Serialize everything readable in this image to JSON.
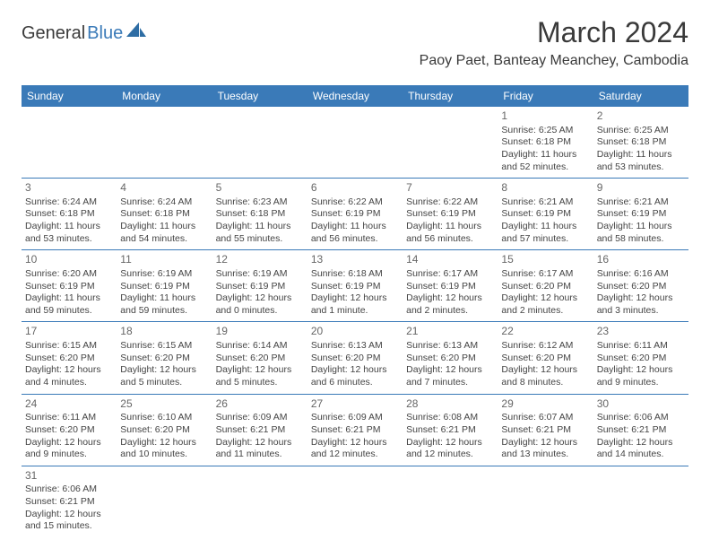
{
  "logo": {
    "general": "General",
    "blue": "Blue"
  },
  "title": "March 2024",
  "location": "Paoy Paet, Banteay Meanchey, Cambodia",
  "dayHeaders": [
    "Sunday",
    "Monday",
    "Tuesday",
    "Wednesday",
    "Thursday",
    "Friday",
    "Saturday"
  ],
  "colors": {
    "headerBg": "#3a7ab8",
    "headerText": "#ffffff",
    "border": "#3a7ab8",
    "cellText": "#444444",
    "dayNumText": "#666666"
  },
  "weeks": [
    [
      null,
      null,
      null,
      null,
      null,
      {
        "num": "1",
        "sunrise": "Sunrise: 6:25 AM",
        "sunset": "Sunset: 6:18 PM",
        "daylight": "Daylight: 11 hours and 52 minutes."
      },
      {
        "num": "2",
        "sunrise": "Sunrise: 6:25 AM",
        "sunset": "Sunset: 6:18 PM",
        "daylight": "Daylight: 11 hours and 53 minutes."
      }
    ],
    [
      {
        "num": "3",
        "sunrise": "Sunrise: 6:24 AM",
        "sunset": "Sunset: 6:18 PM",
        "daylight": "Daylight: 11 hours and 53 minutes."
      },
      {
        "num": "4",
        "sunrise": "Sunrise: 6:24 AM",
        "sunset": "Sunset: 6:18 PM",
        "daylight": "Daylight: 11 hours and 54 minutes."
      },
      {
        "num": "5",
        "sunrise": "Sunrise: 6:23 AM",
        "sunset": "Sunset: 6:18 PM",
        "daylight": "Daylight: 11 hours and 55 minutes."
      },
      {
        "num": "6",
        "sunrise": "Sunrise: 6:22 AM",
        "sunset": "Sunset: 6:19 PM",
        "daylight": "Daylight: 11 hours and 56 minutes."
      },
      {
        "num": "7",
        "sunrise": "Sunrise: 6:22 AM",
        "sunset": "Sunset: 6:19 PM",
        "daylight": "Daylight: 11 hours and 56 minutes."
      },
      {
        "num": "8",
        "sunrise": "Sunrise: 6:21 AM",
        "sunset": "Sunset: 6:19 PM",
        "daylight": "Daylight: 11 hours and 57 minutes."
      },
      {
        "num": "9",
        "sunrise": "Sunrise: 6:21 AM",
        "sunset": "Sunset: 6:19 PM",
        "daylight": "Daylight: 11 hours and 58 minutes."
      }
    ],
    [
      {
        "num": "10",
        "sunrise": "Sunrise: 6:20 AM",
        "sunset": "Sunset: 6:19 PM",
        "daylight": "Daylight: 11 hours and 59 minutes."
      },
      {
        "num": "11",
        "sunrise": "Sunrise: 6:19 AM",
        "sunset": "Sunset: 6:19 PM",
        "daylight": "Daylight: 11 hours and 59 minutes."
      },
      {
        "num": "12",
        "sunrise": "Sunrise: 6:19 AM",
        "sunset": "Sunset: 6:19 PM",
        "daylight": "Daylight: 12 hours and 0 minutes."
      },
      {
        "num": "13",
        "sunrise": "Sunrise: 6:18 AM",
        "sunset": "Sunset: 6:19 PM",
        "daylight": "Daylight: 12 hours and 1 minute."
      },
      {
        "num": "14",
        "sunrise": "Sunrise: 6:17 AM",
        "sunset": "Sunset: 6:19 PM",
        "daylight": "Daylight: 12 hours and 2 minutes."
      },
      {
        "num": "15",
        "sunrise": "Sunrise: 6:17 AM",
        "sunset": "Sunset: 6:20 PM",
        "daylight": "Daylight: 12 hours and 2 minutes."
      },
      {
        "num": "16",
        "sunrise": "Sunrise: 6:16 AM",
        "sunset": "Sunset: 6:20 PM",
        "daylight": "Daylight: 12 hours and 3 minutes."
      }
    ],
    [
      {
        "num": "17",
        "sunrise": "Sunrise: 6:15 AM",
        "sunset": "Sunset: 6:20 PM",
        "daylight": "Daylight: 12 hours and 4 minutes."
      },
      {
        "num": "18",
        "sunrise": "Sunrise: 6:15 AM",
        "sunset": "Sunset: 6:20 PM",
        "daylight": "Daylight: 12 hours and 5 minutes."
      },
      {
        "num": "19",
        "sunrise": "Sunrise: 6:14 AM",
        "sunset": "Sunset: 6:20 PM",
        "daylight": "Daylight: 12 hours and 5 minutes."
      },
      {
        "num": "20",
        "sunrise": "Sunrise: 6:13 AM",
        "sunset": "Sunset: 6:20 PM",
        "daylight": "Daylight: 12 hours and 6 minutes."
      },
      {
        "num": "21",
        "sunrise": "Sunrise: 6:13 AM",
        "sunset": "Sunset: 6:20 PM",
        "daylight": "Daylight: 12 hours and 7 minutes."
      },
      {
        "num": "22",
        "sunrise": "Sunrise: 6:12 AM",
        "sunset": "Sunset: 6:20 PM",
        "daylight": "Daylight: 12 hours and 8 minutes."
      },
      {
        "num": "23",
        "sunrise": "Sunrise: 6:11 AM",
        "sunset": "Sunset: 6:20 PM",
        "daylight": "Daylight: 12 hours and 9 minutes."
      }
    ],
    [
      {
        "num": "24",
        "sunrise": "Sunrise: 6:11 AM",
        "sunset": "Sunset: 6:20 PM",
        "daylight": "Daylight: 12 hours and 9 minutes."
      },
      {
        "num": "25",
        "sunrise": "Sunrise: 6:10 AM",
        "sunset": "Sunset: 6:20 PM",
        "daylight": "Daylight: 12 hours and 10 minutes."
      },
      {
        "num": "26",
        "sunrise": "Sunrise: 6:09 AM",
        "sunset": "Sunset: 6:21 PM",
        "daylight": "Daylight: 12 hours and 11 minutes."
      },
      {
        "num": "27",
        "sunrise": "Sunrise: 6:09 AM",
        "sunset": "Sunset: 6:21 PM",
        "daylight": "Daylight: 12 hours and 12 minutes."
      },
      {
        "num": "28",
        "sunrise": "Sunrise: 6:08 AM",
        "sunset": "Sunset: 6:21 PM",
        "daylight": "Daylight: 12 hours and 12 minutes."
      },
      {
        "num": "29",
        "sunrise": "Sunrise: 6:07 AM",
        "sunset": "Sunset: 6:21 PM",
        "daylight": "Daylight: 12 hours and 13 minutes."
      },
      {
        "num": "30",
        "sunrise": "Sunrise: 6:06 AM",
        "sunset": "Sunset: 6:21 PM",
        "daylight": "Daylight: 12 hours and 14 minutes."
      }
    ],
    [
      {
        "num": "31",
        "sunrise": "Sunrise: 6:06 AM",
        "sunset": "Sunset: 6:21 PM",
        "daylight": "Daylight: 12 hours and 15 minutes."
      },
      null,
      null,
      null,
      null,
      null,
      null
    ]
  ]
}
